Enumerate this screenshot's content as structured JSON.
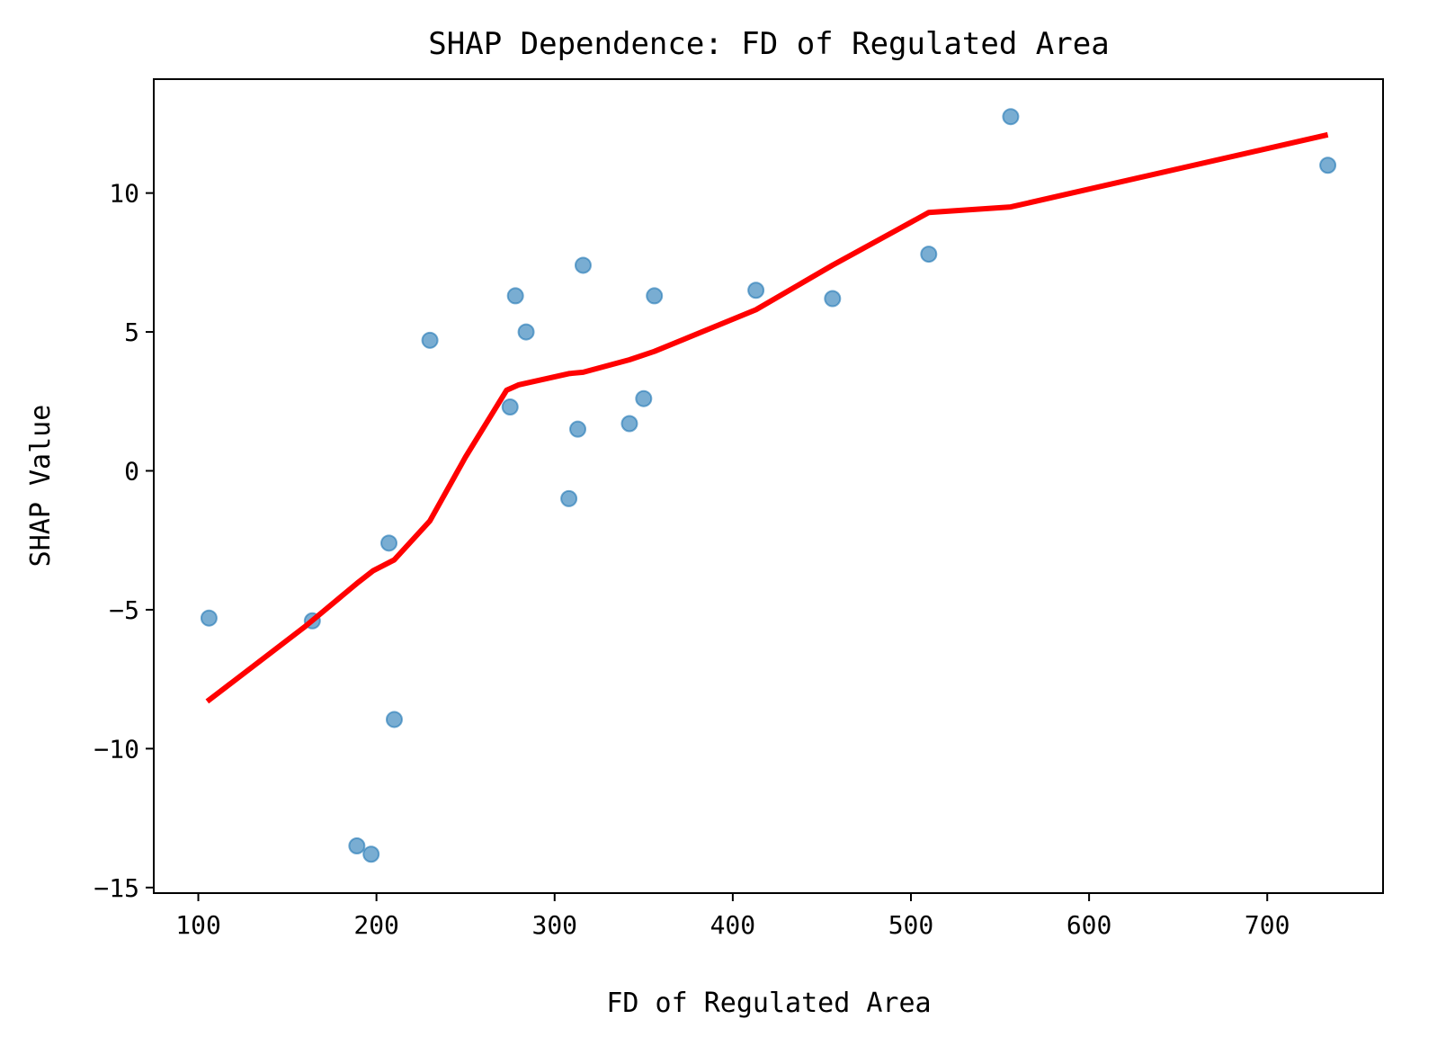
{
  "chart_data": {
    "type": "scatter",
    "title": "SHAP Dependence: FD of Regulated Area",
    "xlabel": "FD of Regulated Area",
    "ylabel": "SHAP Value",
    "xlim": [
      75,
      765
    ],
    "ylim": [
      -15.2,
      14.1
    ],
    "xticks": [
      100,
      200,
      300,
      400,
      500,
      600,
      700
    ],
    "yticks": [
      -15,
      -10,
      -5,
      0,
      5,
      10
    ],
    "grid": false,
    "legend": "none",
    "colors": {
      "points": "#1f77b4",
      "trend_line": "#ff0000"
    },
    "series": [
      {
        "type": "scatter",
        "points": [
          {
            "x": 106,
            "y": -5.3
          },
          {
            "x": 164,
            "y": -5.4
          },
          {
            "x": 189,
            "y": -13.5
          },
          {
            "x": 197,
            "y": -13.8
          },
          {
            "x": 207,
            "y": -2.6
          },
          {
            "x": 210,
            "y": -8.95
          },
          {
            "x": 230,
            "y": 4.7
          },
          {
            "x": 275,
            "y": 2.3
          },
          {
            "x": 278,
            "y": 6.3
          },
          {
            "x": 284,
            "y": 5.0
          },
          {
            "x": 308,
            "y": -1.0
          },
          {
            "x": 313,
            "y": 1.5
          },
          {
            "x": 316,
            "y": 7.4
          },
          {
            "x": 342,
            "y": 1.7
          },
          {
            "x": 350,
            "y": 2.6
          },
          {
            "x": 356,
            "y": 6.3
          },
          {
            "x": 413,
            "y": 6.5
          },
          {
            "x": 456,
            "y": 6.2
          },
          {
            "x": 510,
            "y": 7.8
          },
          {
            "x": 556,
            "y": 12.75
          },
          {
            "x": 734,
            "y": 11.0
          }
        ]
      },
      {
        "type": "line",
        "points": [
          {
            "x": 105,
            "y": -8.3
          },
          {
            "x": 160,
            "y": -5.6
          },
          {
            "x": 190,
            "y": -4.0
          },
          {
            "x": 198,
            "y": -3.6
          },
          {
            "x": 210,
            "y": -3.2
          },
          {
            "x": 230,
            "y": -1.8
          },
          {
            "x": 250,
            "y": 0.5
          },
          {
            "x": 273,
            "y": 2.9
          },
          {
            "x": 280,
            "y": 3.1
          },
          {
            "x": 308,
            "y": 3.5
          },
          {
            "x": 316,
            "y": 3.55
          },
          {
            "x": 342,
            "y": 4.0
          },
          {
            "x": 356,
            "y": 4.3
          },
          {
            "x": 413,
            "y": 5.8
          },
          {
            "x": 456,
            "y": 7.4
          },
          {
            "x": 510,
            "y": 9.3
          },
          {
            "x": 556,
            "y": 9.5
          },
          {
            "x": 734,
            "y": 12.1
          }
        ]
      }
    ]
  }
}
